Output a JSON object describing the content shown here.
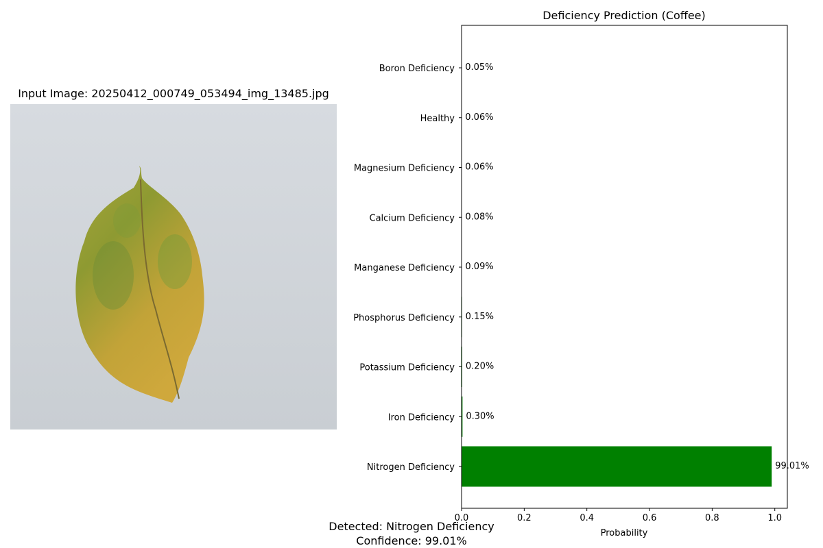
{
  "image_panel": {
    "title": "Input Image: 20250412_000749_053494_img_13485.jpg",
    "image_subject": "coffee-leaf"
  },
  "chart_data": {
    "type": "bar",
    "orientation": "horizontal",
    "title": "Deficiency Prediction (Coffee)",
    "xlabel": "Probability",
    "ylabel": "",
    "xlim": [
      0,
      1.04
    ],
    "xticks": [
      "0.0",
      "0.2",
      "0.4",
      "0.6",
      "0.8",
      "1.0"
    ],
    "categories": [
      "Boron Deficiency",
      "Healthy",
      "Magnesium Deficiency",
      "Calcium Deficiency",
      "Manganese Deficiency",
      "Phosphorus Deficiency",
      "Potassium Deficiency",
      "Iron Deficiency",
      "Nitrogen Deficiency"
    ],
    "values": [
      0.0005,
      0.0006,
      0.0006,
      0.0008,
      0.0009,
      0.0015,
      0.002,
      0.003,
      0.9901
    ],
    "value_labels": [
      "0.05%",
      "0.06%",
      "0.06%",
      "0.08%",
      "0.09%",
      "0.15%",
      "0.20%",
      "0.30%",
      "99.01%"
    ],
    "bar_color": "#008000",
    "grid": false
  },
  "result": {
    "detected_text": "Detected: Nitrogen Deficiency",
    "confidence_text": "Confidence: 99.01%"
  }
}
